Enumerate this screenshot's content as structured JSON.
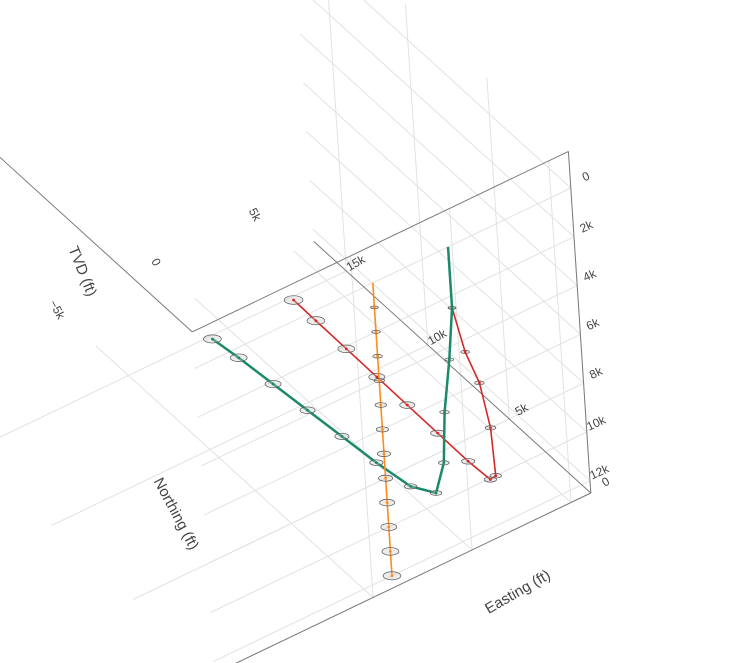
{
  "chart_data": {
    "type": "scatter3d",
    "axes": {
      "x": {
        "title": "Easting (ft)",
        "ticks": [
          {
            "value": -5000,
            "label": "−5k"
          },
          {
            "value": 0,
            "label": "0"
          },
          {
            "value": 5000,
            "label": "5k"
          }
        ]
      },
      "y": {
        "title": "Northing (ft)",
        "ticks": [
          {
            "value": 0,
            "label": "0"
          },
          {
            "value": 5000,
            "label": "5k"
          },
          {
            "value": 10000,
            "label": "10k"
          },
          {
            "value": 15000,
            "label": "15k"
          }
        ]
      },
      "z": {
        "title": "TVD (ft)",
        "reversed": true,
        "ticks": [
          {
            "value": 0,
            "label": "0"
          },
          {
            "value": 2000,
            "label": "2k"
          },
          {
            "value": 4000,
            "label": "4k"
          },
          {
            "value": 6000,
            "label": "6k"
          },
          {
            "value": 8000,
            "label": "8k"
          },
          {
            "value": 10000,
            "label": "10k"
          },
          {
            "value": 12000,
            "label": "12k"
          }
        ]
      }
    },
    "grid": true,
    "series": [
      {
        "color": "#d62728",
        "mode": "lines+markers",
        "uncertainty_ellipses": true,
        "points": [
          {
            "easting": -200,
            "northing": 0,
            "tvd": 0
          },
          {
            "easting": -200,
            "northing": 0,
            "tvd": 2500
          },
          {
            "easting": 300,
            "northing": 0,
            "tvd": 4500
          },
          {
            "easting": 900,
            "northing": 0,
            "tvd": 6000
          },
          {
            "easting": 1300,
            "northing": 0,
            "tvd": 8000
          },
          {
            "easting": 1400,
            "northing": 0,
            "tvd": 10000
          },
          {
            "easting": 1500,
            "northing": 500,
            "tvd": 10500
          },
          {
            "easting": 1600,
            "northing": 2000,
            "tvd": 10700
          },
          {
            "easting": 1700,
            "northing": 4000,
            "tvd": 10800
          },
          {
            "easting": 1800,
            "northing": 6000,
            "tvd": 10900
          },
          {
            "easting": 1900,
            "northing": 8000,
            "tvd": 11000
          },
          {
            "easting": 2000,
            "northing": 10000,
            "tvd": 11100
          },
          {
            "easting": 2100,
            "northing": 12000,
            "tvd": 11200
          },
          {
            "easting": 2200,
            "northing": 13500,
            "tvd": 11300
          }
        ]
      },
      {
        "color": "#1b8a6b",
        "mode": "lines+markers",
        "uncertainty_ellipses": true,
        "points": [
          {
            "easting": -200,
            "northing": 0,
            "tvd": 0
          },
          {
            "easting": -200,
            "northing": 0,
            "tvd": 2500
          },
          {
            "easting": -500,
            "northing": 0,
            "tvd": 4500
          },
          {
            "easting": -900,
            "northing": 0,
            "tvd": 6500
          },
          {
            "easting": -1100,
            "northing": 0,
            "tvd": 8500
          },
          {
            "easting": -1200,
            "northing": 500,
            "tvd": 10000
          },
          {
            "easting": -1300,
            "northing": 2000,
            "tvd": 10600
          },
          {
            "easting": -1400,
            "northing": 4000,
            "tvd": 10800
          },
          {
            "easting": -1500,
            "northing": 6000,
            "tvd": 10900
          },
          {
            "easting": -1600,
            "northing": 8000,
            "tvd": 11000
          },
          {
            "easting": -1700,
            "northing": 10000,
            "tvd": 11100
          },
          {
            "easting": -1800,
            "northing": 12000,
            "tvd": 11200
          },
          {
            "easting": -1900,
            "northing": 13500,
            "tvd": 11300
          }
        ]
      },
      {
        "color": "#ff8c1a",
        "mode": "lines+markers",
        "uncertainty_ellipses": true,
        "points": [
          {
            "easting": -4000,
            "northing": 0,
            "tvd": 0
          },
          {
            "easting": -4000,
            "northing": 0,
            "tvd": 1000
          },
          {
            "easting": -4000,
            "northing": 0,
            "tvd": 2000
          },
          {
            "easting": -4000,
            "northing": 0,
            "tvd": 3000
          },
          {
            "easting": -4000,
            "northing": 0,
            "tvd": 4000
          },
          {
            "easting": -4000,
            "northing": 0,
            "tvd": 5000
          },
          {
            "easting": -4000,
            "northing": 0,
            "tvd": 6000
          },
          {
            "easting": -4000,
            "northing": 0,
            "tvd": 7000
          },
          {
            "easting": -4000,
            "northing": 0,
            "tvd": 8000
          },
          {
            "easting": -4000,
            "northing": 0,
            "tvd": 9000
          },
          {
            "easting": -4000,
            "northing": 0,
            "tvd": 10000
          },
          {
            "easting": -4000,
            "northing": 0,
            "tvd": 11000
          },
          {
            "easting": -4000,
            "northing": 0,
            "tvd": 12000
          }
        ]
      }
    ]
  }
}
